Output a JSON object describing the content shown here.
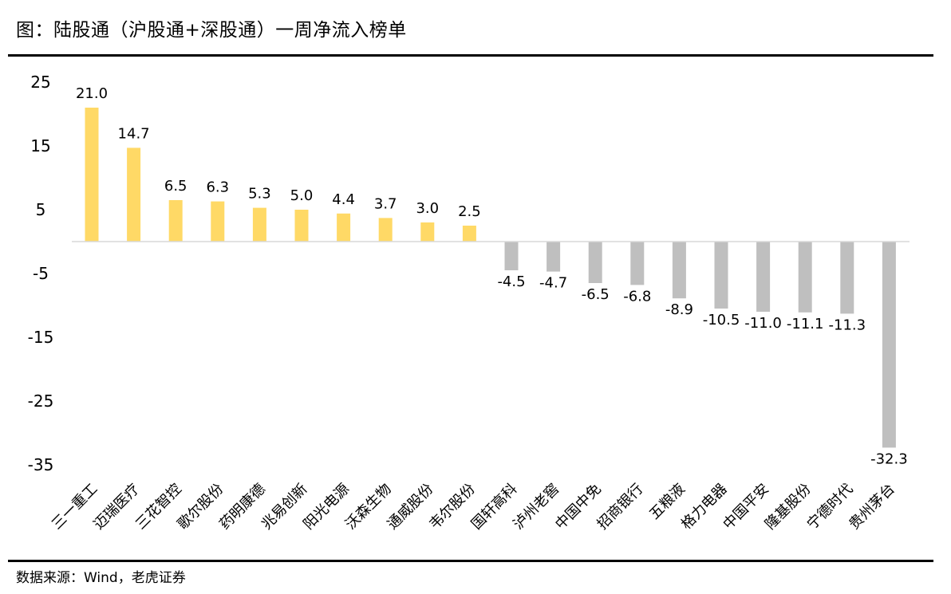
{
  "title": "图：陆股通（沪股通+深股通）一周净流入榜单",
  "source": "数据来源：Wind，老虎证券",
  "colors": {
    "positive": "#ffd966",
    "negative": "#bfbfbf",
    "axis": "#d9d9d9"
  },
  "chart_data": {
    "type": "bar",
    "title": "图：陆股通（沪股通+深股通）一周净流入榜单",
    "categories": [
      "三一重工",
      "迈瑞医疗",
      "三花智控",
      "歌尔股份",
      "药明康德",
      "兆易创新",
      "阳光电源",
      "沃森生物",
      "通威股份",
      "韦尔股份",
      "国轩高科",
      "泸州老窖",
      "中国中免",
      "招商银行",
      "五粮液",
      "格力电器",
      "中国平安",
      "隆基股份",
      "宁德时代",
      "贵州茅台"
    ],
    "values": [
      21.0,
      14.7,
      6.5,
      6.3,
      5.3,
      5.0,
      4.4,
      3.7,
      3.0,
      2.5,
      -4.5,
      -4.7,
      -6.5,
      -6.8,
      -8.9,
      -10.5,
      -11.0,
      -11.1,
      -11.3,
      -32.3
    ],
    "data_labels": [
      "21.0",
      "14.7",
      "6.5",
      "6.3",
      "5.3",
      "5.0",
      "4.4",
      "3.7",
      "3.0",
      "2.5",
      "-4.5",
      "-4.7",
      "-6.5",
      "-6.8",
      "-8.9",
      "-10.5",
      "-11.0",
      "-11.1",
      "-11.3",
      "-32.3"
    ],
    "yticks": [
      25,
      15,
      5,
      -5,
      -15,
      -25,
      -35
    ],
    "ytick_labels": [
      "25",
      "15",
      "5",
      "-5",
      "-15",
      "-25",
      "-35"
    ],
    "ylim": [
      -35,
      25
    ],
    "xlabel": "",
    "ylabel": "",
    "grid": false,
    "legend": "none"
  }
}
